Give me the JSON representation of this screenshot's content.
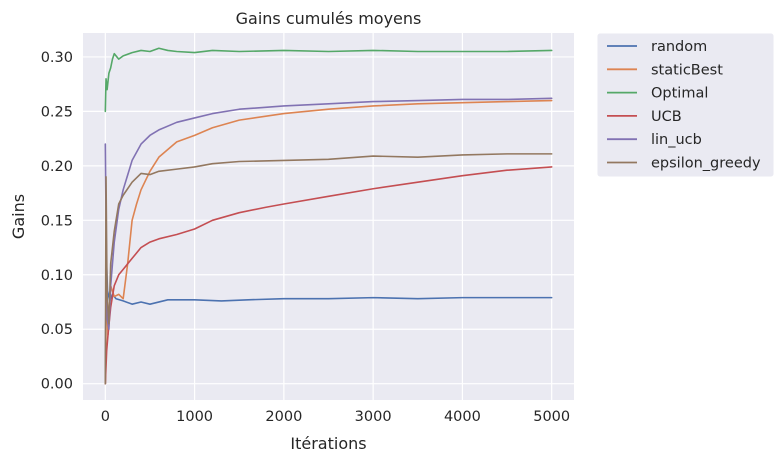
{
  "chart_data": {
    "type": "line",
    "title": "Gains cumulés moyens",
    "xlabel": "Itérations",
    "ylabel": "Gains",
    "xlim": [
      -250,
      5250
    ],
    "ylim": [
      -0.015,
      0.322
    ],
    "xticks": [
      0,
      1000,
      2000,
      3000,
      4000,
      5000
    ],
    "xtick_labels": [
      "0",
      "1000",
      "2000",
      "3000",
      "4000",
      "5000"
    ],
    "yticks": [
      0.0,
      0.05,
      0.1,
      0.15,
      0.2,
      0.25,
      0.3
    ],
    "ytick_labels": [
      "0.00",
      "0.05",
      "0.10",
      "0.15",
      "0.20",
      "0.25",
      "0.30"
    ],
    "grid": true,
    "legend_placement": "outside-top-right",
    "series": [
      {
        "name": "random",
        "color": "#4c72b0",
        "x": [
          0,
          10,
          25,
          50,
          80,
          120,
          200,
          300,
          400,
          500,
          700,
          1000,
          1300,
          1600,
          2000,
          2500,
          3000,
          3500,
          4000,
          4500,
          5000
        ],
        "y": [
          0.0,
          0.12,
          0.085,
          0.076,
          0.082,
          0.078,
          0.076,
          0.073,
          0.075,
          0.073,
          0.077,
          0.077,
          0.076,
          0.077,
          0.078,
          0.078,
          0.079,
          0.078,
          0.079,
          0.079,
          0.079
        ]
      },
      {
        "name": "staticBest",
        "color": "#dd8452",
        "x": [
          0,
          15,
          30,
          60,
          100,
          150,
          200,
          250,
          300,
          350,
          400,
          500,
          600,
          800,
          1000,
          1200,
          1500,
          2000,
          2500,
          3000,
          3500,
          4000,
          4500,
          5000
        ],
        "y": [
          0.0,
          0.095,
          0.045,
          0.09,
          0.08,
          0.082,
          0.078,
          0.11,
          0.15,
          0.165,
          0.178,
          0.195,
          0.208,
          0.222,
          0.228,
          0.235,
          0.242,
          0.248,
          0.252,
          0.255,
          0.257,
          0.258,
          0.259,
          0.26
        ]
      },
      {
        "name": "Optimal",
        "color": "#55a868",
        "x": [
          0,
          8,
          20,
          40,
          60,
          80,
          100,
          150,
          200,
          300,
          400,
          500,
          600,
          700,
          800,
          1000,
          1200,
          1500,
          2000,
          2500,
          3000,
          3500,
          4000,
          4500,
          5000
        ],
        "y": [
          0.25,
          0.28,
          0.27,
          0.285,
          0.29,
          0.298,
          0.303,
          0.298,
          0.301,
          0.304,
          0.306,
          0.305,
          0.308,
          0.306,
          0.305,
          0.304,
          0.306,
          0.305,
          0.306,
          0.305,
          0.306,
          0.305,
          0.305,
          0.305,
          0.306
        ]
      },
      {
        "name": "UCB",
        "color": "#c44e52",
        "x": [
          0,
          15,
          30,
          60,
          100,
          150,
          200,
          300,
          400,
          500,
          600,
          800,
          1000,
          1200,
          1500,
          1800,
          2000,
          2500,
          3000,
          3500,
          4000,
          4500,
          5000
        ],
        "y": [
          0.0,
          0.03,
          0.045,
          0.07,
          0.09,
          0.1,
          0.105,
          0.115,
          0.125,
          0.13,
          0.133,
          0.137,
          0.142,
          0.15,
          0.157,
          0.162,
          0.165,
          0.172,
          0.179,
          0.185,
          0.191,
          0.196,
          0.199
        ]
      },
      {
        "name": "lin_ucb",
        "color": "#8172b3",
        "x": [
          0,
          8,
          20,
          40,
          60,
          100,
          150,
          200,
          300,
          400,
          500,
          600,
          800,
          1000,
          1200,
          1500,
          2000,
          2500,
          3000,
          3500,
          4000,
          4500,
          5000
        ],
        "y": [
          0.22,
          0.15,
          0.06,
          0.05,
          0.09,
          0.13,
          0.16,
          0.178,
          0.205,
          0.22,
          0.228,
          0.233,
          0.24,
          0.244,
          0.248,
          0.252,
          0.255,
          0.257,
          0.259,
          0.26,
          0.261,
          0.261,
          0.262
        ]
      },
      {
        "name": "epsilon_greedy",
        "color": "#937860",
        "x": [
          0,
          8,
          20,
          40,
          60,
          100,
          150,
          200,
          300,
          400,
          500,
          600,
          800,
          1000,
          1200,
          1500,
          2000,
          2500,
          3000,
          3500,
          4000,
          4500,
          5000
        ],
        "y": [
          0.0,
          0.19,
          0.08,
          0.055,
          0.11,
          0.14,
          0.165,
          0.173,
          0.185,
          0.193,
          0.192,
          0.195,
          0.197,
          0.199,
          0.202,
          0.204,
          0.205,
          0.206,
          0.209,
          0.208,
          0.21,
          0.211,
          0.211
        ]
      }
    ]
  }
}
